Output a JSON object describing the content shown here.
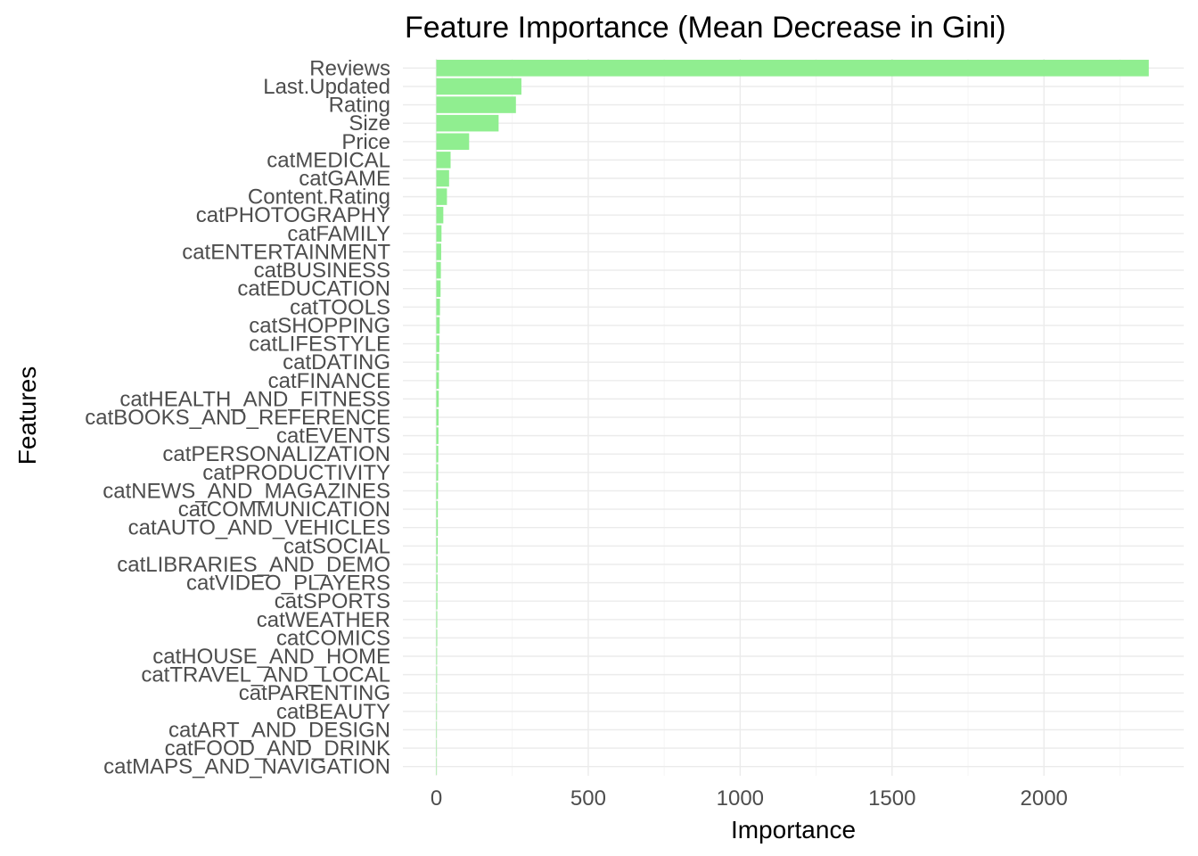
{
  "chart_data": {
    "type": "bar",
    "orientation": "horizontal",
    "title": "Feature Importance (Mean Decrease in Gini)",
    "xlabel": "Importance",
    "ylabel": "Features",
    "xlim": [
      -110,
      2460
    ],
    "x_ticks": [
      0,
      500,
      1000,
      1500,
      2000
    ],
    "grid": true,
    "legend": "none",
    "bar_color": "#90ee90",
    "categories": [
      "Reviews",
      "Last.Updated",
      "Rating",
      "Size",
      "Price",
      "catMEDICAL",
      "catGAME",
      "Content.Rating",
      "catPHOTOGRAPHY",
      "catFAMILY",
      "catENTERTAINMENT",
      "catBUSINESS",
      "catEDUCATION",
      "catTOOLS",
      "catSHOPPING",
      "catLIFESTYLE",
      "catDATING",
      "catFINANCE",
      "catHEALTH_AND_FITNESS",
      "catBOOKS_AND_REFERENCE",
      "catEVENTS",
      "catPERSONALIZATION",
      "catPRODUCTIVITY",
      "catNEWS_AND_MAGAZINES",
      "catCOMMUNICATION",
      "catAUTO_AND_VEHICLES",
      "catSOCIAL",
      "catLIBRARIES_AND_DEMO",
      "catVIDEO_PLAYERS",
      "catSPORTS",
      "catWEATHER",
      "catCOMICS",
      "catHOUSE_AND_HOME",
      "catTRAVEL_AND_LOCAL",
      "catPARENTING",
      "catBEAUTY",
      "catART_AND_DESIGN",
      "catFOOD_AND_DRINK",
      "catMAPS_AND_NAVIGATION"
    ],
    "values": [
      2345,
      280,
      262,
      205,
      108,
      47,
      42,
      35,
      23,
      17,
      16,
      15,
      14,
      12,
      11,
      10,
      9,
      8.5,
      8,
      7.5,
      7,
      6.5,
      6,
      5.5,
      5,
      5,
      4.5,
      4,
      4,
      3.5,
      3,
      3,
      2.5,
      2.5,
      2,
      2,
      1.5,
      1.5,
      1
    ]
  }
}
